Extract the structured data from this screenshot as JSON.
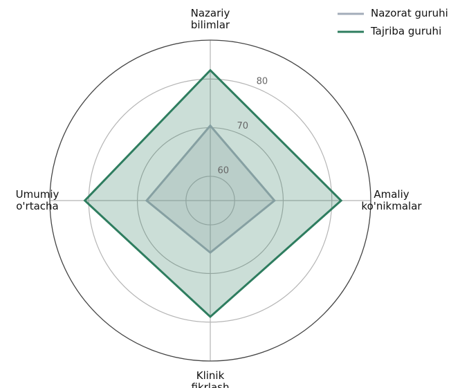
{
  "chart_data": {
    "type": "radar",
    "categories": [
      "Nazariy\nbilimlar",
      "Amaliy\nko'nikmalar",
      "Klinik\nfikrlash",
      "Umumiy\no'rtacha"
    ],
    "series": [
      {
        "name": "Nazorat guruhi",
        "color": "#a3acb9",
        "values": [
          70.4,
          68.2,
          65.7,
          68.1
        ]
      },
      {
        "name": "Tajriba guruhi",
        "color": "#2e7d5f",
        "values": [
          81.8,
          81.9,
          78.9,
          80.8
        ]
      }
    ],
    "ylim": [
      55,
      88
    ],
    "yticks": [
      60,
      70,
      80
    ],
    "grid": true,
    "legend": "upper right"
  }
}
